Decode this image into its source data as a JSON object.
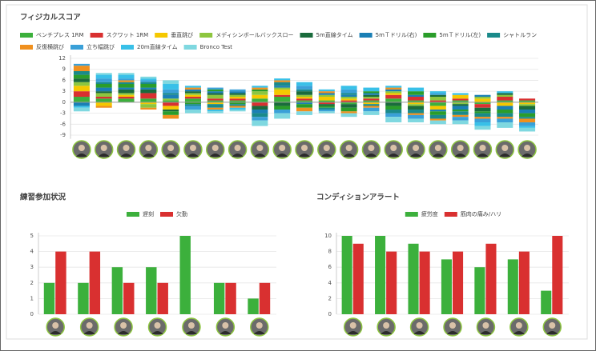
{
  "chart_data": [
    {
      "type": "bar",
      "stacked": true,
      "title": "フィジカルスコア",
      "categories": [
        null,
        null,
        null,
        null,
        null,
        null,
        null,
        null,
        null,
        null,
        null,
        null,
        null,
        null,
        null,
        null,
        null,
        null,
        null,
        null,
        null
      ],
      "ylim": [
        -10,
        12
      ],
      "yticks": [
        -9,
        -6,
        -3,
        0,
        3,
        6,
        9,
        12
      ],
      "grid": true,
      "series": [
        {
          "name": "ベンチプレス 1RM",
          "color": "#3cb03c",
          "values": [
            1.5,
            1,
            1,
            1,
            0.5,
            1,
            0.5,
            0.5,
            1,
            1.5,
            0.5,
            0.5,
            -0.5,
            0.5,
            1,
            0.5,
            -1,
            0.5,
            -0.5,
            0.5,
            0.5
          ]
        },
        {
          "name": "スクワット 1RM",
          "color": "#d93030",
          "values": [
            1.5,
            0.5,
            0.5,
            1.5,
            -1,
            0.5,
            0.5,
            0.5,
            -1,
            0.5,
            0.5,
            -0.5,
            0.5,
            0.5,
            1,
            1,
            0.5,
            0.5,
            -1,
            1,
            0.5
          ]
        },
        {
          "name": "垂直跳び",
          "color": "#f5c800",
          "values": [
            1.5,
            -1,
            0.5,
            -0.5,
            -1,
            0.5,
            -0.5,
            0.5,
            1,
            1.5,
            0.5,
            1,
            0.5,
            -0.5,
            0.5,
            -0.5,
            -1,
            1,
            1,
            -1,
            -0.5
          ]
        },
        {
          "name": "メディシンボールバックスロー",
          "color": "#8dc63f",
          "values": [
            1,
            1,
            0.5,
            -1,
            0.5,
            0.5,
            1,
            0.5,
            1,
            0.5,
            0.5,
            0.5,
            0.5,
            0.5,
            0.5,
            -0.5,
            1,
            -0.5,
            0.5,
            0.5,
            -0.5
          ]
        },
        {
          "name": "5m直線タイム",
          "color": "#1a6b3c",
          "values": [
            1,
            0.5,
            1,
            1,
            -0.5,
            0.5,
            0.5,
            0.5,
            -1,
            -1,
            1,
            -0.5,
            -1,
            0.5,
            -1,
            -1,
            0.5,
            -0.5,
            -1,
            0.5,
            -1
          ]
        },
        {
          "name": "5mＴドリル(右)",
          "color": "#1a7fb5",
          "values": [
            -1,
            1,
            0.5,
            0.5,
            1,
            0.5,
            0.5,
            0.5,
            -1,
            0.5,
            -0.5,
            0.5,
            0.5,
            0.5,
            0.5,
            0.5,
            -0.5,
            -1,
            0.5,
            -1,
            -1
          ]
        },
        {
          "name": "5mＴドリル(左)",
          "color": "#2a9d2a",
          "values": [
            1,
            1,
            1,
            1,
            -1,
            -0.5,
            0.5,
            -0.5,
            0.5,
            -1,
            -1,
            -0.5,
            -1,
            0.5,
            -1,
            1,
            -1,
            -0.5,
            -0.5,
            -1,
            -1
          ]
        },
        {
          "name": "シャトルラン",
          "color": "#1a8a8a",
          "values": [
            1,
            0.5,
            0.5,
            0.5,
            0.5,
            -0.5,
            -1,
            -0.5,
            -1,
            1,
            0.5,
            -0.5,
            0.5,
            -0.5,
            -1,
            -1,
            -1,
            -1,
            -1,
            -1,
            -0.5
          ]
        },
        {
          "name": "反復横跳び",
          "color": "#f0901e",
          "values": [
            1.5,
            -0.5,
            0.5,
            -0.5,
            -1,
            0.5,
            -0.5,
            -0.5,
            0.5,
            0.5,
            -1,
            0.5,
            -0.5,
            -0.5,
            0.5,
            -0.5,
            -0.5,
            -0.5,
            -0.5,
            -0.5,
            -1
          ]
        },
        {
          "name": "立ち幅跳び",
          "color": "#3aa0d8",
          "values": [
            0.5,
            1,
            0.5,
            0.5,
            1,
            -1,
            0.5,
            0.5,
            -1,
            -1,
            1,
            -0.5,
            1,
            -1,
            -1,
            -1,
            0.5,
            -1,
            -1,
            -1,
            -1
          ]
        },
        {
          "name": "20m直線タイム",
          "color": "#39c0e8",
          "values": [
            -0.5,
            1,
            1,
            0.5,
            1.5,
            0.5,
            -0.5,
            -0.5,
            0.5,
            0.5,
            1,
            0.5,
            1,
            1,
            0.5,
            1,
            0.5,
            0.5,
            -1,
            0.5,
            -0.5
          ]
        },
        {
          "name": "Bronco Test",
          "color": "#7fd8e0",
          "values": [
            -1,
            0.5,
            0.5,
            0.5,
            1,
            -1,
            -0.5,
            -0.5,
            -1.5,
            -1.5,
            -1,
            -0.5,
            -1,
            -1,
            -1.5,
            -1,
            -1,
            -1,
            -1,
            -1.5,
            -1
          ]
        }
      ]
    },
    {
      "type": "bar",
      "title": "練習参加状況",
      "categories": [
        null,
        null,
        null,
        null,
        null,
        null,
        null
      ],
      "ylim": [
        0,
        5
      ],
      "yticks": [
        0,
        1,
        2,
        3,
        4,
        5
      ],
      "grid": true,
      "series": [
        {
          "name": "遅刻",
          "color": "#3cb03c",
          "values": [
            2,
            2,
            3,
            3,
            5,
            2,
            1
          ]
        },
        {
          "name": "欠勤",
          "color": "#d93030",
          "values": [
            4,
            4,
            2,
            2,
            0,
            2,
            2
          ]
        }
      ]
    },
    {
      "type": "bar",
      "title": "コンディションアラート",
      "categories": [
        null,
        null,
        null,
        null,
        null,
        null,
        null
      ],
      "ylim": [
        0,
        10
      ],
      "yticks": [
        0,
        2,
        4,
        6,
        8,
        10
      ],
      "grid": true,
      "series": [
        {
          "name": "疲労度",
          "color": "#3cb03c",
          "values": [
            10,
            10,
            9,
            7,
            6,
            7,
            3
          ]
        },
        {
          "name": "筋肉の痛み/ハリ",
          "color": "#d93030",
          "values": [
            9,
            8,
            8,
            8,
            9,
            8,
            10
          ]
        }
      ]
    }
  ]
}
